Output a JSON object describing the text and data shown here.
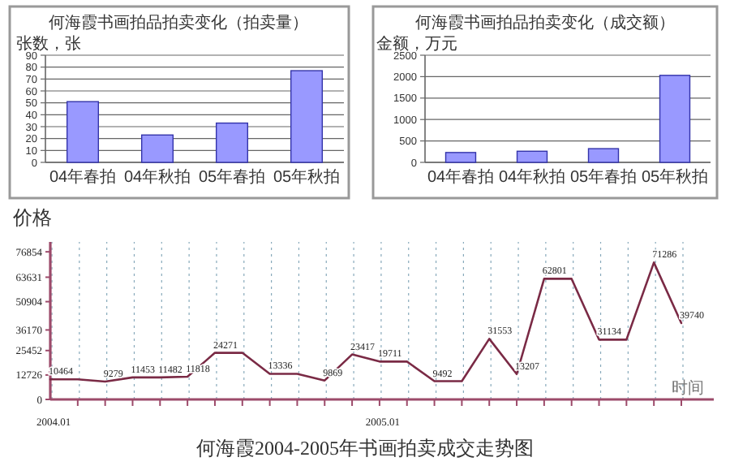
{
  "chart_data": [
    {
      "type": "bar",
      "title": "何海霞书画拍品拍卖变化（拍卖量）",
      "ylabel": "张数，张",
      "categories": [
        "04年春拍",
        "04年秋拍",
        "05年春拍",
        "05年秋拍"
      ],
      "values": [
        51,
        23,
        33,
        77
      ],
      "color": "#9999ff",
      "ylim": [
        0,
        90
      ],
      "yticks": [
        0,
        10,
        20,
        30,
        40,
        50,
        60,
        70,
        80,
        90
      ],
      "grid": "y"
    },
    {
      "type": "bar",
      "title": "何海霞书画拍品拍卖变化（成交额）",
      "ylabel": "金额，万元",
      "categories": [
        "04年春拍",
        "04年秋拍",
        "05年春拍",
        "05年秋拍"
      ],
      "values": [
        230,
        260,
        320,
        2030
      ],
      "color": "#9999ff",
      "ylim": [
        0,
        2500
      ],
      "yticks": [
        0,
        500,
        1000,
        1500,
        2000,
        2500
      ],
      "grid": "y"
    },
    {
      "type": "line",
      "title": "何海霞2004-2005年书画拍卖成交走势图",
      "ylabel": "价格",
      "xlabel": "时间",
      "categories": [
        "2004.01",
        null,
        null,
        null,
        null,
        null,
        null,
        null,
        null,
        null,
        null,
        null,
        "2005.01",
        null,
        null,
        null,
        null,
        null,
        null,
        null,
        null,
        null,
        null,
        null
      ],
      "values": [
        10464,
        10464,
        9279,
        11453,
        11482,
        11818,
        24271,
        24271,
        13336,
        13336,
        9869,
        23417,
        19711,
        19711,
        9492,
        9492,
        31553,
        13207,
        62801,
        62801,
        31134,
        31134,
        71286,
        39740
      ],
      "value_labels": [
        "10464",
        null,
        "9279",
        "11453",
        "11482",
        "11818",
        "24271",
        null,
        "13336",
        null,
        "9869",
        "23417",
        "19711",
        null,
        "9492",
        null,
        "31553",
        "13207",
        "62801",
        null,
        "31134",
        null,
        "71286",
        "39740"
      ],
      "color": "#7a2a45",
      "ylim": [
        0,
        82000
      ],
      "yticks": [
        0,
        12726,
        25452,
        36170,
        50904,
        63631,
        76854
      ],
      "grid": "x"
    }
  ]
}
